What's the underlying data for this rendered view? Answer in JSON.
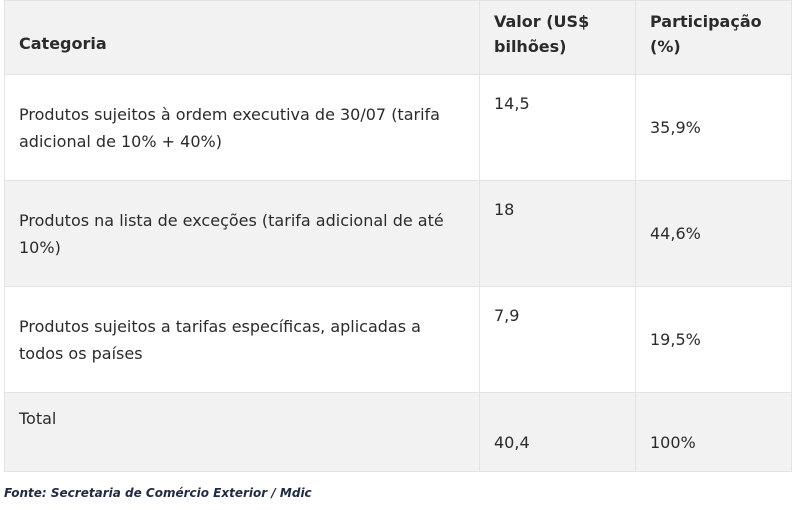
{
  "table": {
    "headers": {
      "category": "Categoria",
      "value": "Valor (US$ bilhões)",
      "share": "Participação (%)"
    },
    "rows": [
      {
        "category": "Produtos sujeitos à ordem executiva de 30/07 (tarifa adicional de 10% + 40%)",
        "value": "14,5",
        "share": "35,9%"
      },
      {
        "category": "Produtos na lista de exceções (tarifa adicional de até 10%)",
        "value": "18",
        "share": "44,6%"
      },
      {
        "category": "Produtos sujeitos a tarifas específicas, aplicadas a todos os países",
        "value": "7,9",
        "share": "19,5%"
      }
    ],
    "total": {
      "category": "Total",
      "value": "40,4",
      "share": "100%"
    }
  },
  "source": "Fonte: Secretaria de Comércio Exterior / Mdic"
}
